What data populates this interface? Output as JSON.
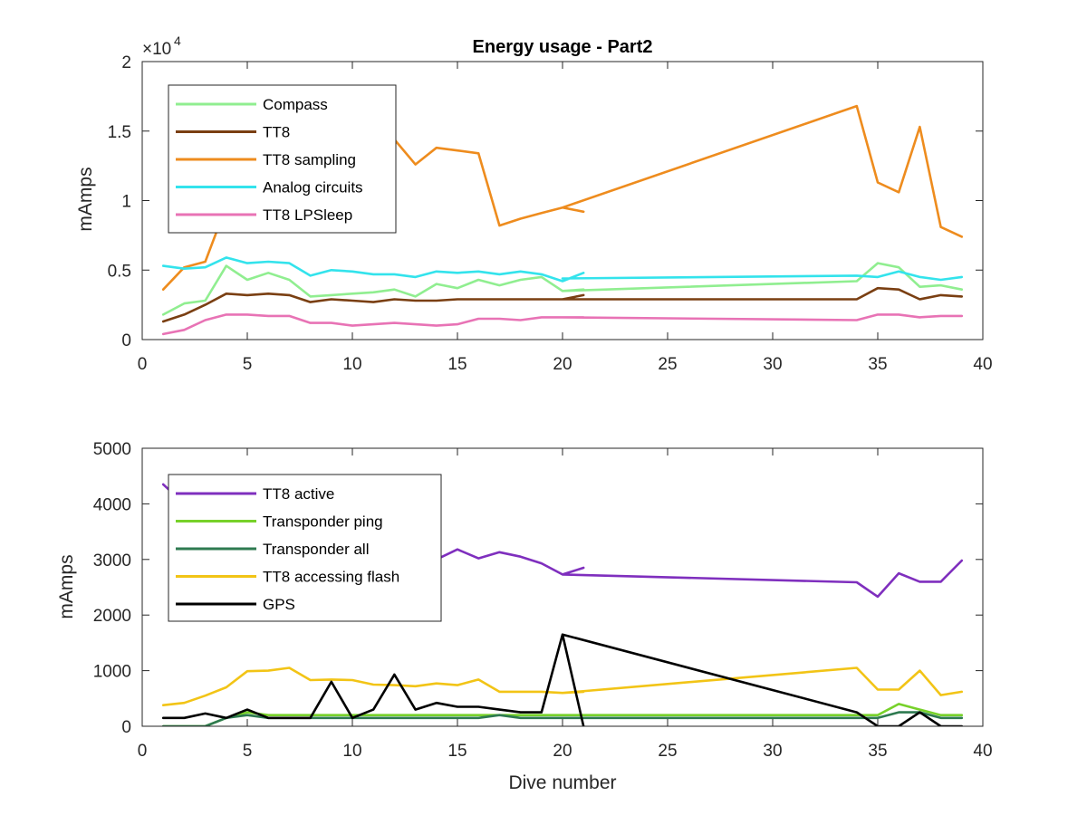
{
  "chart_data": [
    {
      "type": "line",
      "title": "Energy usage - Part2",
      "xlabel": "",
      "ylabel": "mAmps",
      "y_exponent_multiplier": "×10",
      "y_exponent_power": "4",
      "xlim": [
        0,
        40
      ],
      "ylim": [
        0,
        20000
      ],
      "xticks": [
        0,
        5,
        10,
        15,
        20,
        25,
        30,
        35,
        40
      ],
      "xtick_labels": [
        "0",
        "5",
        "10",
        "15",
        "20",
        "25",
        "30",
        "35",
        "40"
      ],
      "yticks": [
        0,
        5000,
        10000,
        15000,
        20000
      ],
      "ytick_labels": [
        "0",
        "0.5",
        "1",
        "1.5",
        "2"
      ],
      "grid": false,
      "legend_placement": "top-left",
      "series": [
        {
          "name": "Compass",
          "color": "#90ee90",
          "x": [
            1,
            2,
            3,
            4,
            5,
            6,
            7,
            8,
            9,
            10,
            11,
            12,
            13,
            14,
            15,
            16,
            17,
            18,
            19,
            20,
            21,
            null,
            20,
            34,
            35,
            36,
            37,
            38,
            39
          ],
          "y": [
            1800,
            2600,
            2800,
            5300,
            4300,
            4800,
            4300,
            3100,
            3200,
            3300,
            3400,
            3600,
            3100,
            4000,
            3700,
            4300,
            3900,
            4300,
            4500,
            3500,
            3600,
            null,
            3500,
            4200,
            5500,
            5200,
            3800,
            3900,
            3600
          ]
        },
        {
          "name": "TT8",
          "color": "#7a3f12",
          "x": [
            1,
            2,
            3,
            4,
            5,
            6,
            7,
            8,
            9,
            10,
            11,
            12,
            13,
            14,
            15,
            16,
            17,
            18,
            19,
            20,
            21,
            null,
            20,
            34,
            35,
            36,
            37,
            38,
            39
          ],
          "y": [
            1300,
            1800,
            2500,
            3300,
            3200,
            3300,
            3200,
            2700,
            2900,
            2800,
            2700,
            2900,
            2800,
            2800,
            2900,
            2900,
            2900,
            2900,
            2900,
            2900,
            3200,
            null,
            2900,
            2900,
            3700,
            3600,
            2900,
            3200,
            3100
          ]
        },
        {
          "name": "TT8 sampling",
          "color": "#ee8c1e",
          "x": [
            1,
            2,
            3,
            4,
            5,
            6,
            7,
            8,
            9,
            10,
            11,
            12,
            13,
            14,
            15,
            16,
            17,
            18,
            19,
            20,
            21,
            null,
            20,
            34,
            35,
            36,
            37,
            38,
            39
          ],
          "y": [
            3600,
            5200,
            5600,
            9600,
            11200,
            11600,
            11900,
            12600,
            12800,
            13200,
            13900,
            14400,
            12600,
            13800,
            13600,
            13400,
            8200,
            8700,
            9100,
            9500,
            9200,
            null,
            9500,
            16800,
            11300,
            10600,
            15300,
            8100,
            7400
          ]
        },
        {
          "name": "Analog circuits",
          "color": "#33e3ec",
          "x": [
            1,
            2,
            3,
            4,
            5,
            6,
            7,
            8,
            9,
            10,
            11,
            12,
            13,
            14,
            15,
            16,
            17,
            18,
            19,
            20,
            21,
            null,
            20,
            34,
            35,
            36,
            37,
            38,
            39
          ],
          "y": [
            5300,
            5100,
            5200,
            5900,
            5500,
            5600,
            5500,
            4600,
            5000,
            4900,
            4700,
            4700,
            4500,
            4900,
            4800,
            4900,
            4700,
            4900,
            4700,
            4200,
            4800,
            null,
            4400,
            4600,
            4500,
            4900,
            4500,
            4300,
            4500
          ]
        },
        {
          "name": "TT8 LPSleep",
          "color": "#e873b5",
          "x": [
            1,
            2,
            3,
            4,
            5,
            6,
            7,
            8,
            9,
            10,
            11,
            12,
            13,
            14,
            15,
            16,
            17,
            18,
            19,
            20,
            21,
            null,
            20,
            34,
            35,
            36,
            37,
            38,
            39
          ],
          "y": [
            400,
            700,
            1400,
            1800,
            1800,
            1700,
            1700,
            1200,
            1200,
            1000,
            1100,
            1200,
            1100,
            1000,
            1100,
            1500,
            1500,
            1400,
            1600,
            1600,
            1600,
            null,
            1600,
            1400,
            1800,
            1800,
            1600,
            1700,
            1700
          ]
        }
      ]
    },
    {
      "type": "line",
      "title": "",
      "xlabel": "Dive number",
      "ylabel": "mAmps",
      "xlim": [
        0,
        40
      ],
      "ylim": [
        0,
        5000
      ],
      "xticks": [
        0,
        5,
        10,
        15,
        20,
        25,
        30,
        35,
        40
      ],
      "xtick_labels": [
        "0",
        "5",
        "10",
        "15",
        "20",
        "25",
        "30",
        "35",
        "40"
      ],
      "yticks": [
        0,
        1000,
        2000,
        3000,
        4000,
        5000
      ],
      "ytick_labels": [
        "0",
        "1000",
        "2000",
        "3000",
        "4000",
        "5000"
      ],
      "grid": false,
      "legend_placement": "top-left",
      "series": [
        {
          "name": "TT8 active",
          "color": "#7f2fbe",
          "x": [
            1,
            2,
            3,
            4,
            5,
            6,
            7,
            8,
            9,
            10,
            11,
            12,
            13,
            14,
            15,
            16,
            17,
            18,
            19,
            20,
            21,
            null,
            20,
            34,
            35,
            36,
            37,
            38,
            39
          ],
          "y": [
            4350,
            4000,
            3900,
            3800,
            3700,
            3600,
            3500,
            3400,
            3300,
            3200,
            3150,
            3100,
            3050,
            3000,
            3180,
            3020,
            3130,
            3050,
            2930,
            2730,
            2850,
            null,
            2730,
            2590,
            2330,
            2750,
            2600,
            2600,
            2980
          ]
        },
        {
          "name": "Transponder ping",
          "color": "#77d12a",
          "x": [
            1,
            2,
            3,
            4,
            5,
            6,
            7,
            8,
            9,
            10,
            11,
            12,
            13,
            14,
            15,
            16,
            17,
            18,
            19,
            20,
            21,
            null,
            20,
            34,
            35,
            36,
            37,
            38,
            39
          ],
          "y": [
            0,
            0,
            0,
            150,
            250,
            200,
            200,
            200,
            200,
            200,
            200,
            200,
            200,
            200,
            200,
            200,
            200,
            200,
            200,
            200,
            200,
            null,
            200,
            200,
            200,
            400,
            300,
            200,
            200
          ]
        },
        {
          "name": "Transponder all",
          "color": "#2e7a50",
          "x": [
            1,
            2,
            3,
            4,
            5,
            6,
            7,
            8,
            9,
            10,
            11,
            12,
            13,
            14,
            15,
            16,
            17,
            18,
            19,
            20,
            21,
            null,
            20,
            34,
            35,
            36,
            37,
            38,
            39
          ],
          "y": [
            0,
            0,
            0,
            150,
            200,
            150,
            150,
            150,
            150,
            150,
            150,
            150,
            150,
            150,
            150,
            150,
            200,
            150,
            150,
            150,
            150,
            null,
            150,
            150,
            150,
            250,
            250,
            150,
            150
          ]
        },
        {
          "name": "TT8 accessing flash",
          "color": "#f2c416",
          "x": [
            1,
            2,
            3,
            4,
            5,
            6,
            7,
            8,
            9,
            10,
            11,
            12,
            13,
            14,
            15,
            16,
            17,
            18,
            19,
            20,
            21,
            null,
            20,
            34,
            35,
            36,
            37,
            38,
            39
          ],
          "y": [
            380,
            420,
            550,
            700,
            990,
            1000,
            1050,
            830,
            840,
            830,
            750,
            740,
            720,
            770,
            740,
            840,
            620,
            620,
            620,
            600,
            620,
            null,
            600,
            1050,
            660,
            660,
            1000,
            560,
            620
          ]
        },
        {
          "name": "GPS",
          "color": "#000000",
          "x": [
            1,
            2,
            3,
            4,
            5,
            6,
            7,
            8,
            9,
            10,
            11,
            12,
            13,
            14,
            15,
            16,
            17,
            18,
            19,
            20,
            21,
            null,
            20,
            34,
            35,
            36,
            37,
            38,
            39
          ],
          "y": [
            150,
            150,
            230,
            150,
            300,
            150,
            150,
            150,
            800,
            150,
            300,
            930,
            300,
            420,
            350,
            350,
            300,
            250,
            250,
            1650,
            0,
            null,
            1650,
            250,
            0,
            0,
            250,
            0,
            0
          ]
        }
      ]
    }
  ]
}
